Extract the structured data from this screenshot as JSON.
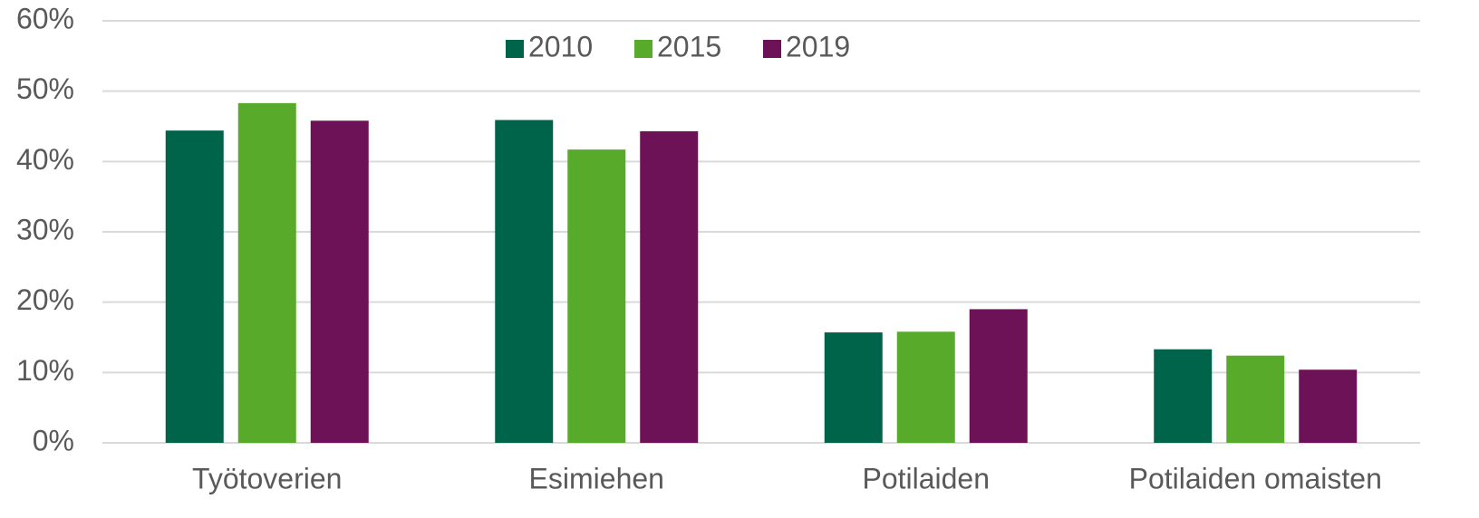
{
  "chart_data": {
    "type": "bar",
    "categories": [
      "Työtoverien",
      "Esimiehen",
      "Potilaiden",
      "Potilaiden omaisten"
    ],
    "series": [
      {
        "name": "2010",
        "color": "#00644a",
        "values": [
          44.4,
          45.9,
          15.7,
          13.3
        ]
      },
      {
        "name": "2015",
        "color": "#58aa2a",
        "values": [
          48.3,
          41.7,
          15.8,
          12.4
        ]
      },
      {
        "name": "2019",
        "color": "#6d1257",
        "values": [
          45.8,
          44.3,
          19.0,
          10.4
        ]
      }
    ],
    "ylim": [
      0,
      60
    ],
    "yticks": [
      {
        "value": 0,
        "label": "0%"
      },
      {
        "value": 10,
        "label": "10%"
      },
      {
        "value": 20,
        "label": "20%"
      },
      {
        "value": 30,
        "label": "30%"
      },
      {
        "value": 40,
        "label": "40%"
      },
      {
        "value": 50,
        "label": "50%"
      },
      {
        "value": 60,
        "label": "60%"
      }
    ],
    "grid": true,
    "legend": "top"
  }
}
